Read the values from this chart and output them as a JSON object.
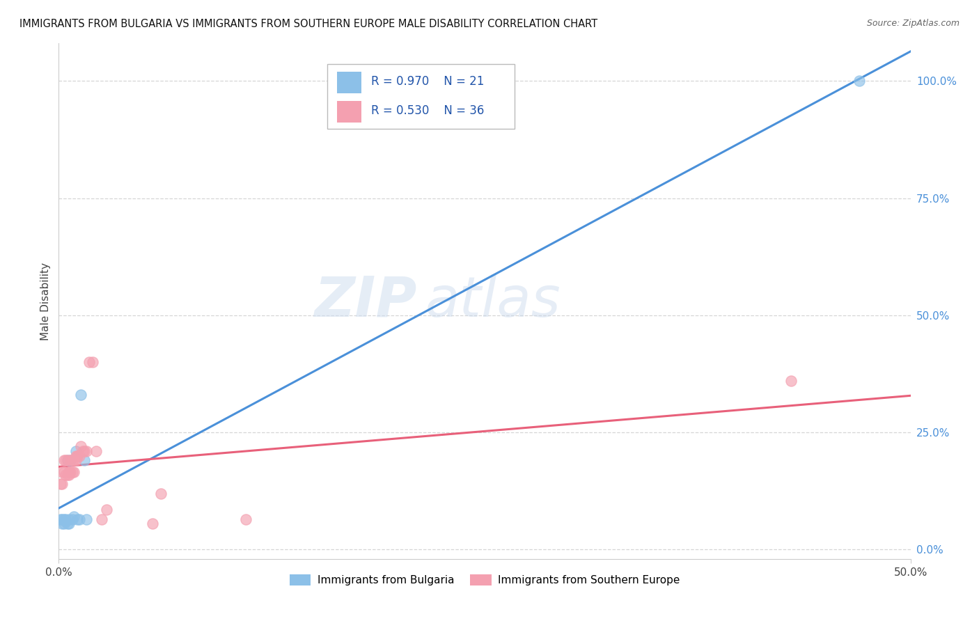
{
  "title": "IMMIGRANTS FROM BULGARIA VS IMMIGRANTS FROM SOUTHERN EUROPE MALE DISABILITY CORRELATION CHART",
  "source": "Source: ZipAtlas.com",
  "ylabel": "Male Disability",
  "xmin": 0.0,
  "xmax": 0.5,
  "ymin": -0.02,
  "ymax": 1.08,
  "xtick_positions": [
    0.0,
    0.5
  ],
  "xtick_labels": [
    "0.0%",
    "50.0%"
  ],
  "yticks_right": [
    0.0,
    0.25,
    0.5,
    0.75,
    1.0
  ],
  "ytick_labels_right": [
    "0.0%",
    "25.0%",
    "50.0%",
    "75.0%",
    "100.0%"
  ],
  "legend1_r": "R = 0.970",
  "legend1_n": "N = 21",
  "legend2_r": "R = 0.530",
  "legend2_n": "N = 36",
  "legend_label1": "Immigrants from Bulgaria",
  "legend_label2": "Immigrants from Southern Europe",
  "color_bulgaria": "#8cc0e8",
  "color_southern": "#f4a0b0",
  "line_color_bulgaria": "#4a90d9",
  "line_color_southern": "#e8607a",
  "watermark_zip": "ZIP",
  "watermark_atlas": "atlas",
  "bulgaria_x": [
    0.001,
    0.002,
    0.002,
    0.003,
    0.003,
    0.004,
    0.004,
    0.005,
    0.005,
    0.006,
    0.006,
    0.007,
    0.008,
    0.009,
    0.01,
    0.011,
    0.012,
    0.013,
    0.015,
    0.016,
    0.47
  ],
  "bulgaria_y": [
    0.065,
    0.065,
    0.055,
    0.065,
    0.055,
    0.06,
    0.065,
    0.19,
    0.055,
    0.055,
    0.065,
    0.19,
    0.065,
    0.07,
    0.21,
    0.065,
    0.065,
    0.33,
    0.19,
    0.065,
    1.0
  ],
  "southern_x": [
    0.001,
    0.002,
    0.002,
    0.003,
    0.003,
    0.004,
    0.004,
    0.005,
    0.005,
    0.006,
    0.006,
    0.006,
    0.007,
    0.007,
    0.008,
    0.008,
    0.009,
    0.009,
    0.01,
    0.01,
    0.011,
    0.011,
    0.012,
    0.013,
    0.014,
    0.015,
    0.016,
    0.018,
    0.02,
    0.022,
    0.025,
    0.028,
    0.055,
    0.06,
    0.11,
    0.43
  ],
  "southern_y": [
    0.14,
    0.14,
    0.165,
    0.165,
    0.19,
    0.16,
    0.19,
    0.16,
    0.19,
    0.16,
    0.165,
    0.165,
    0.165,
    0.19,
    0.165,
    0.19,
    0.165,
    0.19,
    0.2,
    0.19,
    0.2,
    0.2,
    0.2,
    0.22,
    0.21,
    0.21,
    0.21,
    0.4,
    0.4,
    0.21,
    0.065,
    0.085,
    0.055,
    0.12,
    0.065,
    0.36
  ],
  "background_color": "#ffffff",
  "grid_color": "#cccccc",
  "legend_r_color": "#333333",
  "legend_n_color": "#2255aa",
  "title_color": "#111111",
  "right_axis_color": "#4a90d9"
}
